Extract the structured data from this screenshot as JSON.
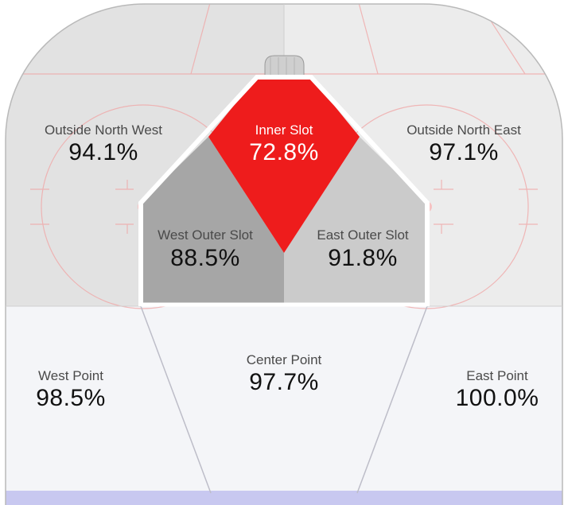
{
  "colors": {
    "inner_slot": "#ee1c1c",
    "west_outer_slot": "#a6a6a6",
    "east_outer_slot": "#cbcbcb",
    "upper_west": "#e2e2e2",
    "upper_east": "#ececec",
    "point_zone": "#f4f5f8",
    "rink_line": "#f0a8a8",
    "blue_line": "#c8c8f0"
  },
  "zones": {
    "outside_north_west": {
      "label": "Outside North West",
      "value": "94.1%"
    },
    "outside_north_east": {
      "label": "Outside North East",
      "value": "97.1%"
    },
    "inner_slot": {
      "label": "Inner Slot",
      "value": "72.8%"
    },
    "west_outer_slot": {
      "label": "West Outer Slot",
      "value": "88.5%"
    },
    "east_outer_slot": {
      "label": "East Outer Slot",
      "value": "91.8%"
    },
    "west_point": {
      "label": "West Point",
      "value": "98.5%"
    },
    "center_point": {
      "label": "Center Point",
      "value": "97.7%"
    },
    "east_point": {
      "label": "East Point",
      "value": "100.0%"
    }
  }
}
